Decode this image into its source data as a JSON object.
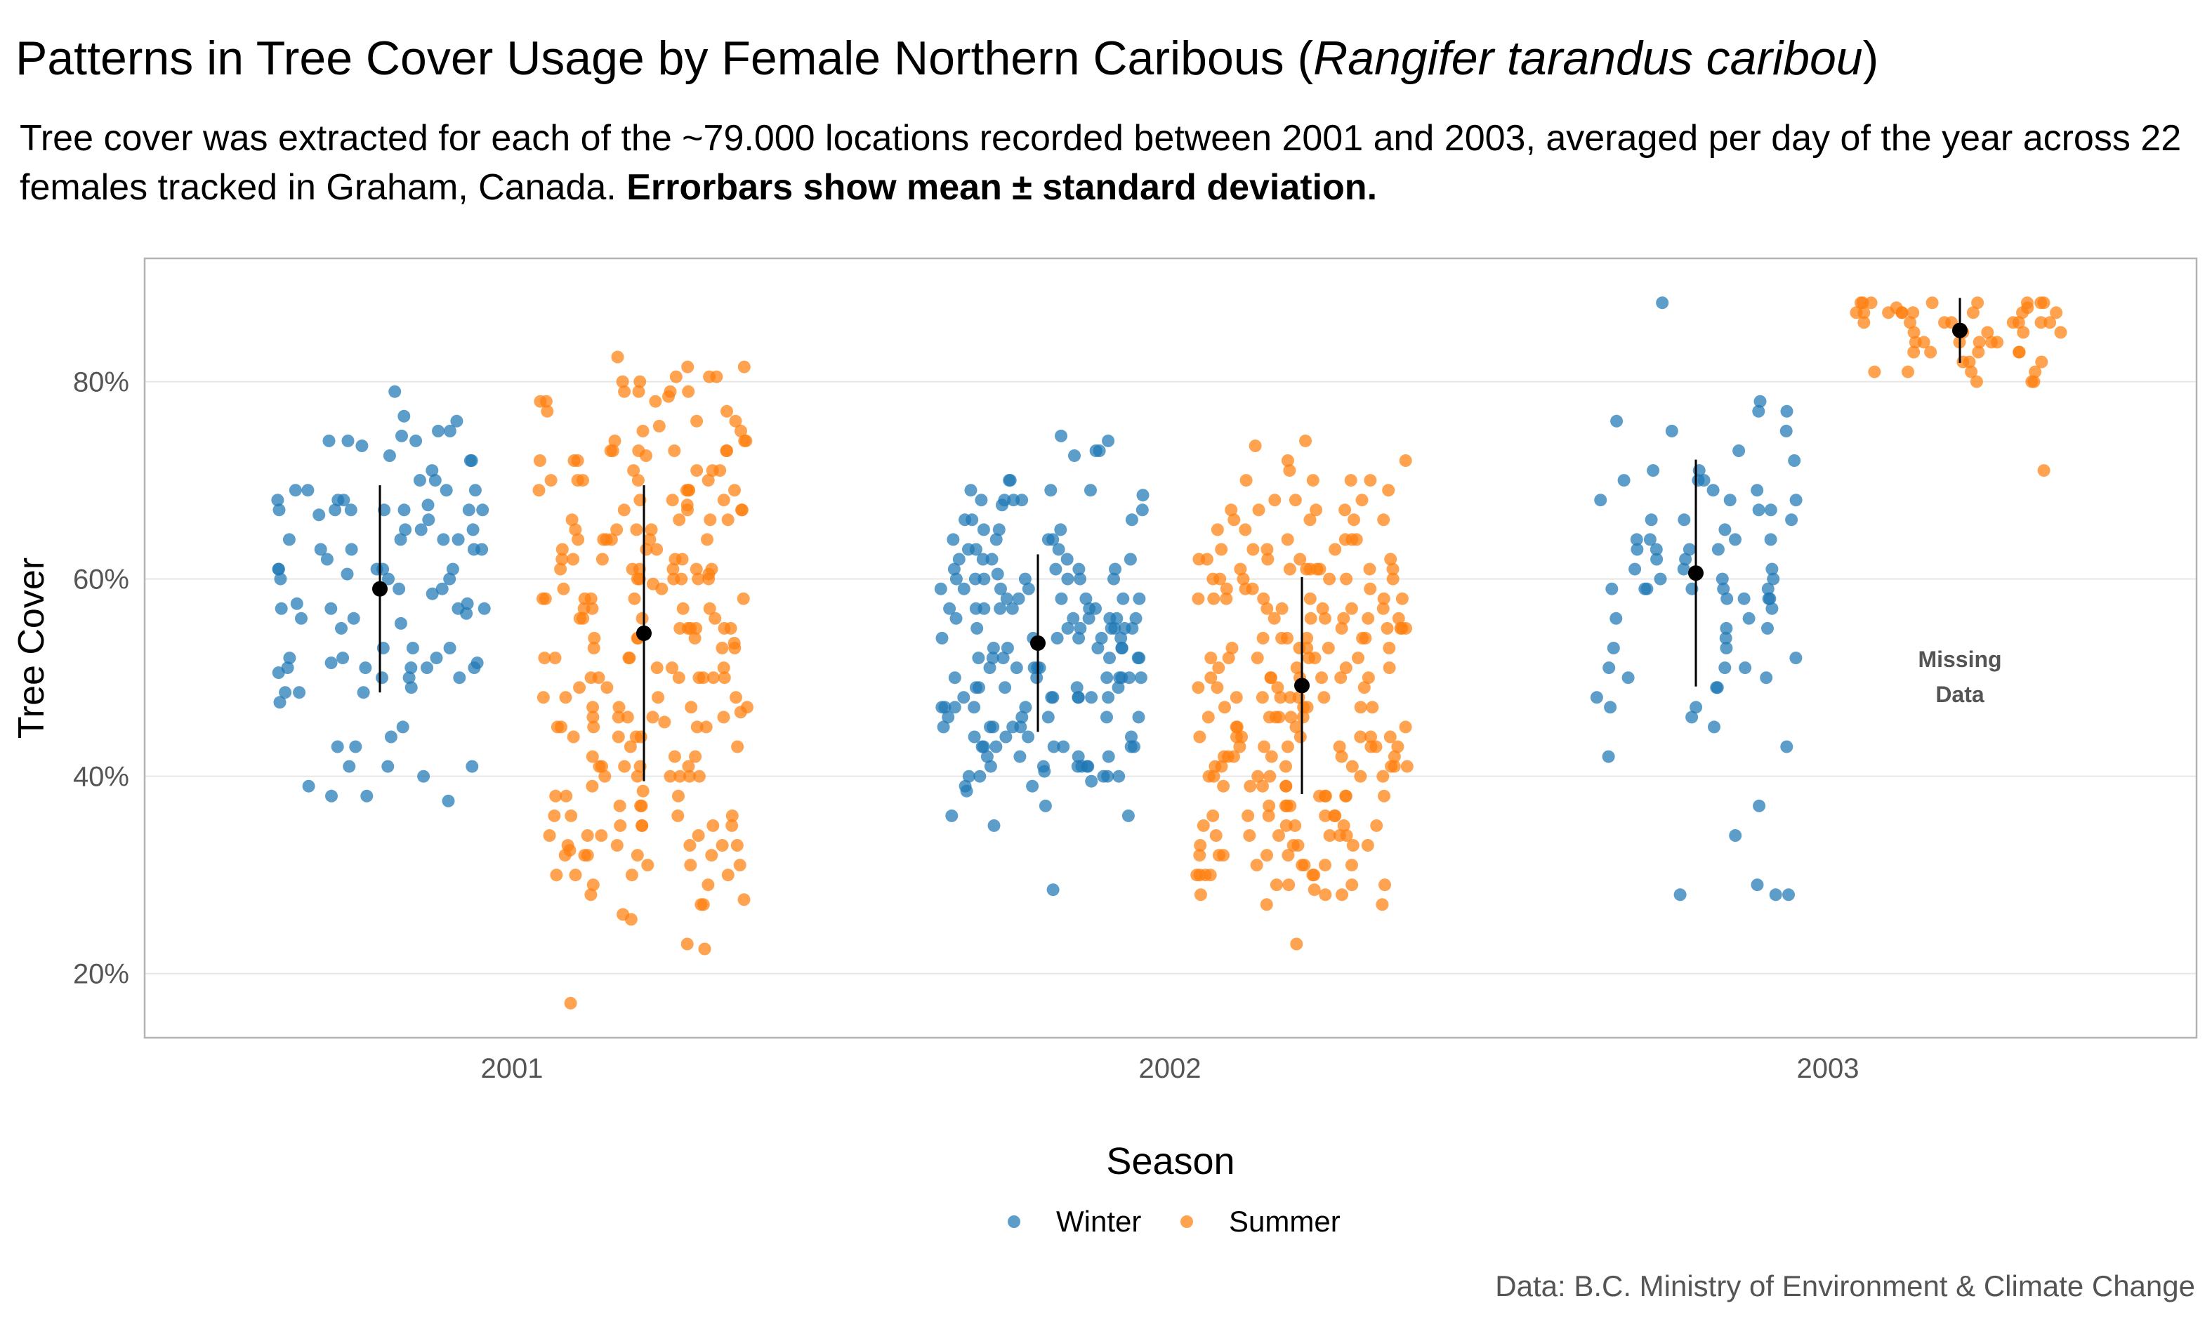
{
  "header": {
    "title_main": "Patterns in Tree Cover Usage by Female Northern Caribous (",
    "title_species": "Rangifer tarandus caribou",
    "title_end": ")",
    "subtitle_main": "Tree cover was extracted for each of the ~79.000 locations recorded between 2001 and 2003, averaged per day of the year across 22 females tracked in Graham, Canada. ",
    "subtitle_bold": "Errorbars show mean ± standard deviation."
  },
  "caption": "Data: B.C. Ministry of Environment & Climate Change",
  "chart_data": {
    "type": "scatter",
    "subtype": "jittered strip plot with mean ± sd errorbars",
    "ylabel": "Tree Cover",
    "xlabel": "",
    "categories": [
      "2001",
      "2002",
      "2003"
    ],
    "y_ticks": [
      20,
      40,
      60,
      80
    ],
    "y_tick_labels": [
      "20%",
      "40%",
      "60%",
      "80%"
    ],
    "ylim": [
      13.5,
      92.5
    ],
    "grid": true,
    "legend": {
      "title": "Season",
      "position": "bottom"
    },
    "colors": {
      "Winter": "#1F77B4",
      "Summer": "#FF7F0E",
      "mean": "#000000",
      "grid": "#e6e6e6",
      "border": "#b3b3b3"
    },
    "series": [
      {
        "name": "Winter",
        "year": "2001",
        "mean": 59.0,
        "sd": 10.5,
        "points": [
          51,
          51,
          50,
          48.5,
          63,
          41,
          72.5,
          72,
          74,
          75,
          69,
          74,
          73.5,
          75,
          67,
          65,
          53,
          51.5,
          51.5,
          52,
          52,
          44,
          57.5,
          56,
          59,
          58.5,
          38,
          43,
          43,
          67.5,
          60,
          61,
          63,
          57,
          57,
          67,
          76,
          68,
          47.5,
          48.5,
          68,
          69,
          71,
          37.5,
          56,
          55.5,
          57.5,
          57,
          59,
          65,
          64,
          69,
          72,
          67,
          61,
          79,
          66,
          60,
          50.5,
          45,
          51,
          55,
          53,
          48.5,
          63,
          64,
          64,
          61,
          60.5,
          61,
          69,
          67,
          66.5,
          67,
          64,
          63,
          65,
          67,
          51,
          62,
          61,
          52,
          53,
          50,
          49,
          41,
          39,
          41,
          40,
          74.5,
          74,
          70,
          70,
          76.5,
          60,
          68,
          57,
          67,
          51,
          50,
          56.5,
          38
        ]
      },
      {
        "name": "Summer",
        "year": "2001",
        "mean": 54.5,
        "sd": 15.0,
        "points": [
          55,
          54,
          52,
          58,
          62,
          40,
          41,
          45,
          47,
          50,
          54,
          57,
          59,
          61,
          64,
          66,
          68,
          70,
          72,
          73,
          75,
          75.5,
          77,
          80.5,
          78,
          70,
          36,
          38,
          38.5,
          33,
          32,
          30,
          29,
          27,
          17,
          53.5,
          60,
          48,
          44,
          40,
          43,
          49,
          50,
          52,
          54,
          36,
          35,
          37,
          34,
          33,
          61,
          64,
          66,
          67.5,
          68,
          69,
          70,
          72,
          73,
          71,
          74,
          75,
          47,
          46,
          45,
          44,
          42,
          51,
          55,
          57,
          80.5,
          80.5,
          79,
          81.5,
          74,
          73,
          72.5,
          71,
          70,
          69,
          67,
          66,
          65,
          63,
          62,
          60,
          58,
          56,
          53,
          50,
          48,
          46,
          44,
          42,
          40,
          38,
          36,
          35,
          34,
          33,
          32,
          31,
          30,
          29,
          28,
          27,
          26,
          25.5,
          23,
          22.5,
          60,
          55,
          50,
          45,
          48,
          52,
          56,
          58,
          62,
          65,
          68,
          70,
          66,
          64,
          63,
          60,
          57,
          54,
          51,
          49,
          47,
          45,
          43,
          41,
          39,
          37,
          35,
          34,
          80,
          79,
          78,
          77,
          76,
          74,
          73,
          71,
          69,
          67,
          65,
          64,
          62,
          61,
          59,
          58,
          56,
          55,
          53,
          52,
          50,
          48,
          46,
          45,
          44,
          42,
          41,
          40,
          38,
          37,
          35,
          33,
          32,
          31,
          30,
          73,
          72,
          69,
          67,
          64,
          61,
          58,
          56,
          55,
          47,
          46,
          40,
          41,
          31,
          32,
          32.5,
          33,
          34,
          35,
          36,
          50,
          53,
          58,
          60,
          61,
          62,
          63,
          64,
          65,
          67,
          69,
          71,
          73,
          76,
          78,
          79,
          80,
          81.5,
          82.5,
          79,
          78.5,
          61,
          60,
          59.5,
          60.5,
          57,
          55,
          51,
          50,
          46,
          46.5,
          45.5,
          40,
          41,
          32,
          30,
          27.5
        ]
      },
      {
        "name": "Winter",
        "year": "2002",
        "mean": 53.5,
        "sd": 9.0,
        "points": [
          55,
          53,
          52,
          50,
          49,
          48,
          45,
          43,
          42,
          41,
          40.5,
          40,
          39.5,
          69,
          67.5,
          62,
          60,
          58,
          57,
          56,
          55,
          54,
          52,
          50,
          49,
          47,
          45,
          43,
          42,
          41,
          40,
          59,
          57,
          54,
          51,
          48,
          46,
          43,
          41,
          40,
          28.5,
          74,
          69,
          68,
          66,
          62,
          60,
          58,
          56,
          54,
          52,
          50,
          48,
          46,
          44,
          42,
          41,
          40,
          36,
          35,
          73,
          72.5,
          68.5,
          68,
          64,
          63,
          61,
          60,
          59,
          58,
          57,
          56,
          55,
          54,
          53,
          52,
          51,
          50,
          49,
          48,
          47,
          46,
          45,
          44,
          43,
          42,
          41,
          40,
          39,
          38.5,
          60,
          57,
          55,
          53,
          51,
          50,
          49,
          47,
          45,
          43,
          41,
          39,
          70,
          68,
          66,
          65,
          64,
          62,
          61,
          60,
          59,
          58,
          57,
          56,
          55,
          54,
          53,
          52,
          51,
          50,
          49,
          48,
          47,
          46,
          45,
          44,
          43,
          36,
          74.5,
          73,
          70,
          69,
          68,
          67,
          65,
          64,
          63,
          62,
          61,
          60,
          59,
          58,
          57,
          56,
          55,
          54,
          53,
          52,
          51,
          50,
          48,
          46,
          44,
          43,
          37,
          60,
          60.5,
          61,
          62,
          63,
          64,
          65,
          66,
          55,
          56,
          57,
          58,
          47,
          48
        ]
      },
      {
        "name": "Summer",
        "year": "2002",
        "mean": 49.2,
        "sd": 11.0,
        "points": [
          61,
          60,
          58,
          56,
          54,
          52,
          50,
          48,
          46,
          44,
          43,
          42,
          41,
          40,
          39,
          38,
          36,
          34,
          33,
          31,
          29,
          28,
          69,
          66,
          64,
          62,
          61,
          60,
          58,
          56,
          54,
          52,
          50,
          48,
          46,
          44,
          43,
          42,
          41,
          40,
          38,
          36,
          34,
          32,
          30,
          28.5,
          27,
          23,
          74,
          70,
          67,
          63,
          61,
          59,
          57,
          55,
          53,
          51,
          49,
          47,
          45,
          43,
          41,
          39,
          37,
          35,
          33,
          31,
          30,
          28,
          64,
          62,
          60,
          58,
          56,
          54,
          52,
          50,
          48,
          46,
          44,
          42,
          40,
          38,
          36,
          34,
          32,
          30,
          29,
          71,
          68,
          65,
          63,
          61,
          59,
          57,
          55,
          53,
          51,
          49,
          47,
          45,
          43,
          41,
          39,
          37,
          35,
          33,
          31,
          29,
          72,
          70,
          68,
          66,
          64,
          62,
          60,
          58,
          56,
          54,
          52,
          50,
          48,
          46,
          44,
          42,
          40,
          38,
          36,
          34,
          32,
          30,
          70,
          67,
          65,
          63,
          61,
          59,
          57,
          55,
          53,
          51,
          49,
          47,
          45,
          43,
          41,
          39,
          37,
          35,
          33,
          31,
          73.5,
          72,
          70,
          68,
          66,
          64,
          62,
          60,
          58,
          56,
          54,
          52,
          50,
          48,
          46,
          44,
          42,
          40,
          38,
          36,
          34,
          32,
          30,
          29,
          67,
          66,
          63,
          61,
          59,
          57,
          55,
          53,
          51,
          49,
          47,
          45,
          43,
          41,
          39,
          37,
          35,
          33,
          31,
          27,
          67,
          61,
          60,
          58,
          57,
          55,
          53,
          52,
          50,
          48,
          46,
          44,
          42,
          40,
          38,
          36,
          34,
          32,
          30,
          28,
          61,
          54,
          58,
          44,
          41,
          50,
          35,
          62,
          56,
          47,
          43
        ]
      },
      {
        "name": "Winter",
        "year": "2003",
        "mean": 60.6,
        "sd": 11.5,
        "points": [
          88,
          77,
          77,
          75,
          73,
          66,
          66,
          63,
          59,
          54,
          53,
          51,
          47,
          45,
          71,
          69,
          68,
          64,
          64,
          63,
          60,
          59,
          58,
          57,
          55,
          53,
          50,
          47,
          42,
          34,
          29,
          37,
          76,
          71,
          70,
          67,
          64,
          63,
          61,
          60,
          59,
          58,
          56,
          51,
          43,
          28,
          78,
          72,
          70,
          68,
          67,
          65,
          62,
          61,
          60,
          59,
          58,
          56,
          55,
          52,
          49,
          48,
          46,
          28,
          75,
          70,
          69,
          68,
          66,
          64,
          63,
          62,
          61,
          59,
          58,
          51,
          50,
          49,
          28,
          59
        ]
      },
      {
        "name": "Summer",
        "year": "2003",
        "mean": 85.2,
        "sd": 3.3,
        "points": [
          87,
          86,
          83,
          71,
          88,
          87.5,
          87,
          86,
          82,
          81,
          88,
          87,
          86,
          84,
          83,
          81,
          80,
          88,
          87,
          86,
          85,
          84,
          83,
          82,
          81,
          88,
          87,
          86,
          85,
          84,
          83,
          88,
          87,
          86,
          85,
          84,
          82,
          88,
          87,
          86,
          85,
          83,
          81,
          80,
          88,
          87.5,
          87,
          86,
          85,
          84,
          88,
          87,
          84,
          80
        ]
      }
    ],
    "annotation": {
      "year": "2003",
      "series": "Winter",
      "lines": [
        "Missing",
        "Data"
      ]
    }
  }
}
